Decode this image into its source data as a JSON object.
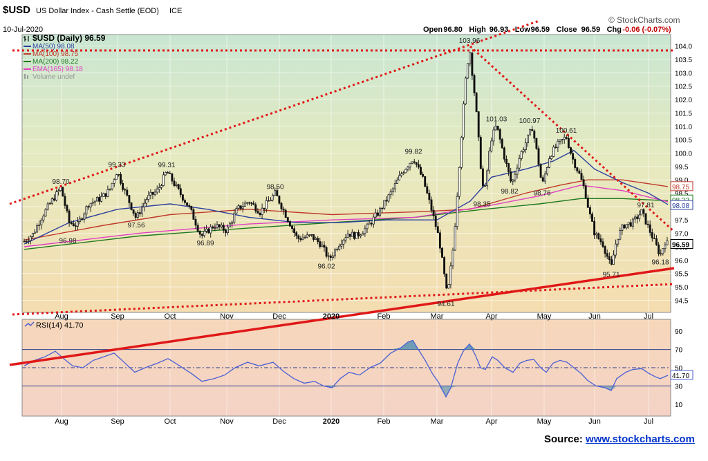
{
  "header": {
    "symbol": "$USD",
    "name": "US Dollar Index - Cash Settle (EOD)",
    "exchange": "ICE",
    "date": "10-Jul-2020",
    "brand": "© StockCharts.com",
    "ohlc": [
      {
        "label": "Open",
        "value": "96.80"
      },
      {
        "label": "High",
        "value": "96.93"
      },
      {
        "label": "Low",
        "value": "96.59"
      },
      {
        "label": "Close",
        "value": "96.59"
      },
      {
        "label": "Chg",
        "value": "-0.06 (-0.07%)"
      }
    ]
  },
  "legend": [
    {
      "text": "$USD (Daily) 96.59",
      "color": "#000000",
      "marker": "ohlc"
    },
    {
      "text": "MA(50) 98.08",
      "color": "#2b3f9e",
      "marker": "line"
    },
    {
      "text": "MA(100) 98.75",
      "color": "#c0392b",
      "marker": "line"
    },
    {
      "text": "MA(200) 98.22",
      "color": "#1f7a1f",
      "marker": "line"
    },
    {
      "text": "EMA(165) 98.18",
      "color": "#e040c0",
      "marker": "line"
    },
    {
      "text": "Volume undef",
      "color": "#999999",
      "marker": "bar"
    }
  ],
  "rsi_legend": "RSI(14) 41.70",
  "source": {
    "label": "Source:",
    "link": "www.stockcharts.com"
  },
  "chart_data": [
    {
      "type": "line",
      "panel": "price",
      "ylim": [
        94.2,
        104.3
      ],
      "y_ticks": [
        "104.0",
        "103.5",
        "103.0",
        "102.5",
        "102.0",
        "101.5",
        "101.0",
        "100.5",
        "100.0",
        "99.5",
        "99.0",
        "98.5",
        "98.0",
        "97.5",
        "97.0",
        "96.5",
        "96.0",
        "95.5",
        "95.0",
        "94.5"
      ],
      "x_ticks": [
        "Aug",
        "Sep",
        "Oct",
        "Nov",
        "Dec",
        "2020",
        "Feb",
        "Mar",
        "Apr",
        "May",
        "Jun",
        "Jul"
      ],
      "x_tick_pos": [
        89,
        170,
        246,
        328,
        404,
        479,
        555,
        632,
        711,
        787,
        860,
        938
      ],
      "price_path": [
        [
          35,
          96.7
        ],
        [
          48,
          96.98
        ],
        [
          60,
          97.6
        ],
        [
          72,
          98.1
        ],
        [
          88,
          98.7
        ],
        [
          100,
          97.4
        ],
        [
          112,
          97.3
        ],
        [
          128,
          98.1
        ],
        [
          145,
          98.3
        ],
        [
          158,
          98.6
        ],
        [
          169,
          99.33
        ],
        [
          180,
          98.6
        ],
        [
          197,
          97.56
        ],
        [
          212,
          98.3
        ],
        [
          228,
          98.6
        ],
        [
          241,
          99.31
        ],
        [
          258,
          98.6
        ],
        [
          275,
          97.9
        ],
        [
          291,
          96.89
        ],
        [
          310,
          97.3
        ],
        [
          328,
          97.1
        ],
        [
          343,
          97.9
        ],
        [
          360,
          98.2
        ],
        [
          376,
          97.8
        ],
        [
          398,
          98.5
        ],
        [
          415,
          97.6
        ],
        [
          430,
          96.8
        ],
        [
          450,
          96.9
        ],
        [
          464,
          96.6
        ],
        [
          476,
          96.02
        ],
        [
          490,
          96.6
        ],
        [
          503,
          97.0
        ],
        [
          515,
          96.9
        ],
        [
          530,
          97.2
        ],
        [
          548,
          97.8
        ],
        [
          565,
          98.5
        ],
        [
          582,
          99.3
        ],
        [
          598,
          99.82
        ],
        [
          612,
          99.0
        ],
        [
          624,
          97.9
        ],
        [
          635,
          96.8
        ],
        [
          647,
          94.61
        ],
        [
          656,
          96.6
        ],
        [
          666,
          100.2
        ],
        [
          673,
          102.6
        ],
        [
          679,
          103.96
        ],
        [
          688,
          101.8
        ],
        [
          695,
          99.6
        ],
        [
          700,
          98.35
        ],
        [
          710,
          100.5
        ],
        [
          718,
          101.03
        ],
        [
          728,
          100.0
        ],
        [
          740,
          98.82
        ],
        [
          752,
          99.9
        ],
        [
          764,
          100.6
        ],
        [
          770,
          100.97
        ],
        [
          778,
          99.8
        ],
        [
          784,
          98.76
        ],
        [
          795,
          99.9
        ],
        [
          806,
          100.3
        ],
        [
          819,
          100.61
        ],
        [
          828,
          99.8
        ],
        [
          838,
          99.2
        ],
        [
          846,
          98.6
        ],
        [
          852,
          97.8
        ],
        [
          860,
          97.0
        ],
        [
          872,
          96.6
        ],
        [
          884,
          95.71
        ],
        [
          892,
          96.8
        ],
        [
          902,
          97.3
        ],
        [
          915,
          97.4
        ],
        [
          928,
          97.81
        ],
        [
          938,
          97.2
        ],
        [
          948,
          96.6
        ],
        [
          955,
          96.18
        ],
        [
          962,
          96.7
        ],
        [
          966,
          96.59
        ]
      ],
      "ma50": [
        [
          35,
          96.6
        ],
        [
          100,
          97.4
        ],
        [
          170,
          97.9
        ],
        [
          246,
          98.1
        ],
        [
          300,
          97.9
        ],
        [
          360,
          97.6
        ],
        [
          430,
          97.4
        ],
        [
          490,
          97.4
        ],
        [
          560,
          97.5
        ],
        [
          632,
          97.5
        ],
        [
          680,
          98.2
        ],
        [
          711,
          99.1
        ],
        [
          760,
          99.4
        ],
        [
          800,
          99.7
        ],
        [
          830,
          100.1
        ],
        [
          860,
          99.4
        ],
        [
          900,
          98.9
        ],
        [
          938,
          98.5
        ],
        [
          966,
          98.08
        ]
      ],
      "ma100": [
        [
          35,
          96.75
        ],
        [
          150,
          97.3
        ],
        [
          246,
          97.7
        ],
        [
          360,
          97.9
        ],
        [
          480,
          97.7
        ],
        [
          600,
          97.8
        ],
        [
          680,
          97.9
        ],
        [
          760,
          98.5
        ],
        [
          810,
          98.8
        ],
        [
          850,
          99.0
        ],
        [
          900,
          99.0
        ],
        [
          966,
          98.75
        ]
      ],
      "ma200": [
        [
          35,
          96.4
        ],
        [
          200,
          96.9
        ],
        [
          360,
          97.2
        ],
        [
          480,
          97.4
        ],
        [
          600,
          97.6
        ],
        [
          700,
          97.9
        ],
        [
          780,
          98.1
        ],
        [
          840,
          98.3
        ],
        [
          900,
          98.3
        ],
        [
          966,
          98.22
        ]
      ],
      "ema165": [
        [
          35,
          96.5
        ],
        [
          200,
          97.0
        ],
        [
          360,
          97.35
        ],
        [
          480,
          97.5
        ],
        [
          600,
          97.6
        ],
        [
          700,
          98.0
        ],
        [
          780,
          98.4
        ],
        [
          840,
          98.8
        ],
        [
          900,
          98.6
        ],
        [
          966,
          98.18
        ]
      ],
      "price_labels": [
        {
          "text": "98.70",
          "x": 88,
          "y": 98.7,
          "pos": "above"
        },
        {
          "text": "96.98",
          "x": 98,
          "y": 96.98,
          "pos": "below"
        },
        {
          "text": "99.33",
          "x": 169,
          "y": 99.33,
          "pos": "above"
        },
        {
          "text": "97.56",
          "x": 197,
          "y": 97.56,
          "pos": "below"
        },
        {
          "text": "99.31",
          "x": 241,
          "y": 99.31,
          "pos": "above"
        },
        {
          "text": "96.89",
          "x": 297,
          "y": 96.89,
          "pos": "below"
        },
        {
          "text": "98.50",
          "x": 398,
          "y": 98.5,
          "pos": "above"
        },
        {
          "text": "96.02",
          "x": 472,
          "y": 96.02,
          "pos": "below"
        },
        {
          "text": "99.82",
          "x": 598,
          "y": 99.82,
          "pos": "above"
        },
        {
          "text": "94.61",
          "x": 645,
          "y": 94.61,
          "pos": "below"
        },
        {
          "text": "103.96",
          "x": 679,
          "y": 103.96,
          "pos": "above"
        },
        {
          "text": "98.35",
          "x": 697,
          "y": 98.35,
          "pos": "below"
        },
        {
          "text": "101.03",
          "x": 718,
          "y": 101.03,
          "pos": "above"
        },
        {
          "text": "98.82",
          "x": 737,
          "y": 98.82,
          "pos": "below"
        },
        {
          "text": "100.97",
          "x": 766,
          "y": 100.97,
          "pos": "above"
        },
        {
          "text": "98.76",
          "x": 784,
          "y": 98.76,
          "pos": "below"
        },
        {
          "text": "100.61",
          "x": 819,
          "y": 100.61,
          "pos": "above"
        },
        {
          "text": "95.71",
          "x": 884,
          "y": 95.71,
          "pos": "below"
        },
        {
          "text": "97.81",
          "x": 934,
          "y": 97.81,
          "pos": "above"
        },
        {
          "text": "96.18",
          "x": 955,
          "y": 96.18,
          "pos": "below"
        }
      ],
      "right_badges": [
        {
          "text": "98.75",
          "y": 98.75,
          "color": "#c0392b"
        },
        {
          "text": "98.22",
          "y": 98.25,
          "color": "#1f7a1f"
        },
        {
          "text": "98.08",
          "y": 98.05,
          "color": "#2b3f9e"
        },
        {
          "text": "96.59",
          "y": 96.59,
          "color": "#000000"
        }
      ]
    },
    {
      "type": "line",
      "panel": "rsi",
      "ylim": [
        0,
        100
      ],
      "y_ticks": [
        "90",
        "70",
        "50",
        "30",
        "10"
      ],
      "levels": [
        70,
        50,
        30
      ],
      "rsi_path": [
        [
          35,
          52
        ],
        [
          50,
          58
        ],
        [
          65,
          62
        ],
        [
          80,
          68
        ],
        [
          92,
          60
        ],
        [
          105,
          52
        ],
        [
          120,
          50
        ],
        [
          135,
          58
        ],
        [
          150,
          62
        ],
        [
          165,
          66
        ],
        [
          178,
          57
        ],
        [
          195,
          45
        ],
        [
          210,
          50
        ],
        [
          228,
          55
        ],
        [
          243,
          60
        ],
        [
          260,
          52
        ],
        [
          278,
          43
        ],
        [
          292,
          35
        ],
        [
          310,
          38
        ],
        [
          325,
          42
        ],
        [
          340,
          50
        ],
        [
          358,
          56
        ],
        [
          375,
          52
        ],
        [
          395,
          56
        ],
        [
          410,
          46
        ],
        [
          425,
          38
        ],
        [
          440,
          33
        ],
        [
          455,
          35
        ],
        [
          468,
          30
        ],
        [
          480,
          28
        ],
        [
          492,
          38
        ],
        [
          505,
          45
        ],
        [
          520,
          42
        ],
        [
          535,
          50
        ],
        [
          550,
          55
        ],
        [
          565,
          66
        ],
        [
          580,
          72
        ],
        [
          590,
          78
        ],
        [
          597,
          80
        ],
        [
          605,
          70
        ],
        [
          615,
          58
        ],
        [
          625,
          44
        ],
        [
          635,
          33
        ],
        [
          645,
          18
        ],
        [
          652,
          28
        ],
        [
          662,
          55
        ],
        [
          670,
          68
        ],
        [
          679,
          76
        ],
        [
          688,
          63
        ],
        [
          695,
          50
        ],
        [
          702,
          48
        ],
        [
          712,
          62
        ],
        [
          720,
          58
        ],
        [
          730,
          50
        ],
        [
          742,
          45
        ],
        [
          752,
          55
        ],
        [
          762,
          58
        ],
        [
          772,
          59
        ],
        [
          782,
          50
        ],
        [
          790,
          45
        ],
        [
          800,
          55
        ],
        [
          810,
          58
        ],
        [
          820,
          56
        ],
        [
          830,
          50
        ],
        [
          840,
          44
        ],
        [
          850,
          36
        ],
        [
          862,
          30
        ],
        [
          875,
          28
        ],
        [
          884,
          25
        ],
        [
          892,
          38
        ],
        [
          905,
          45
        ],
        [
          915,
          48
        ],
        [
          928,
          49
        ],
        [
          938,
          44
        ],
        [
          948,
          40
        ],
        [
          955,
          38
        ],
        [
          966,
          41.7
        ]
      ],
      "badge": {
        "text": "41.70",
        "y": 41.7
      }
    }
  ]
}
